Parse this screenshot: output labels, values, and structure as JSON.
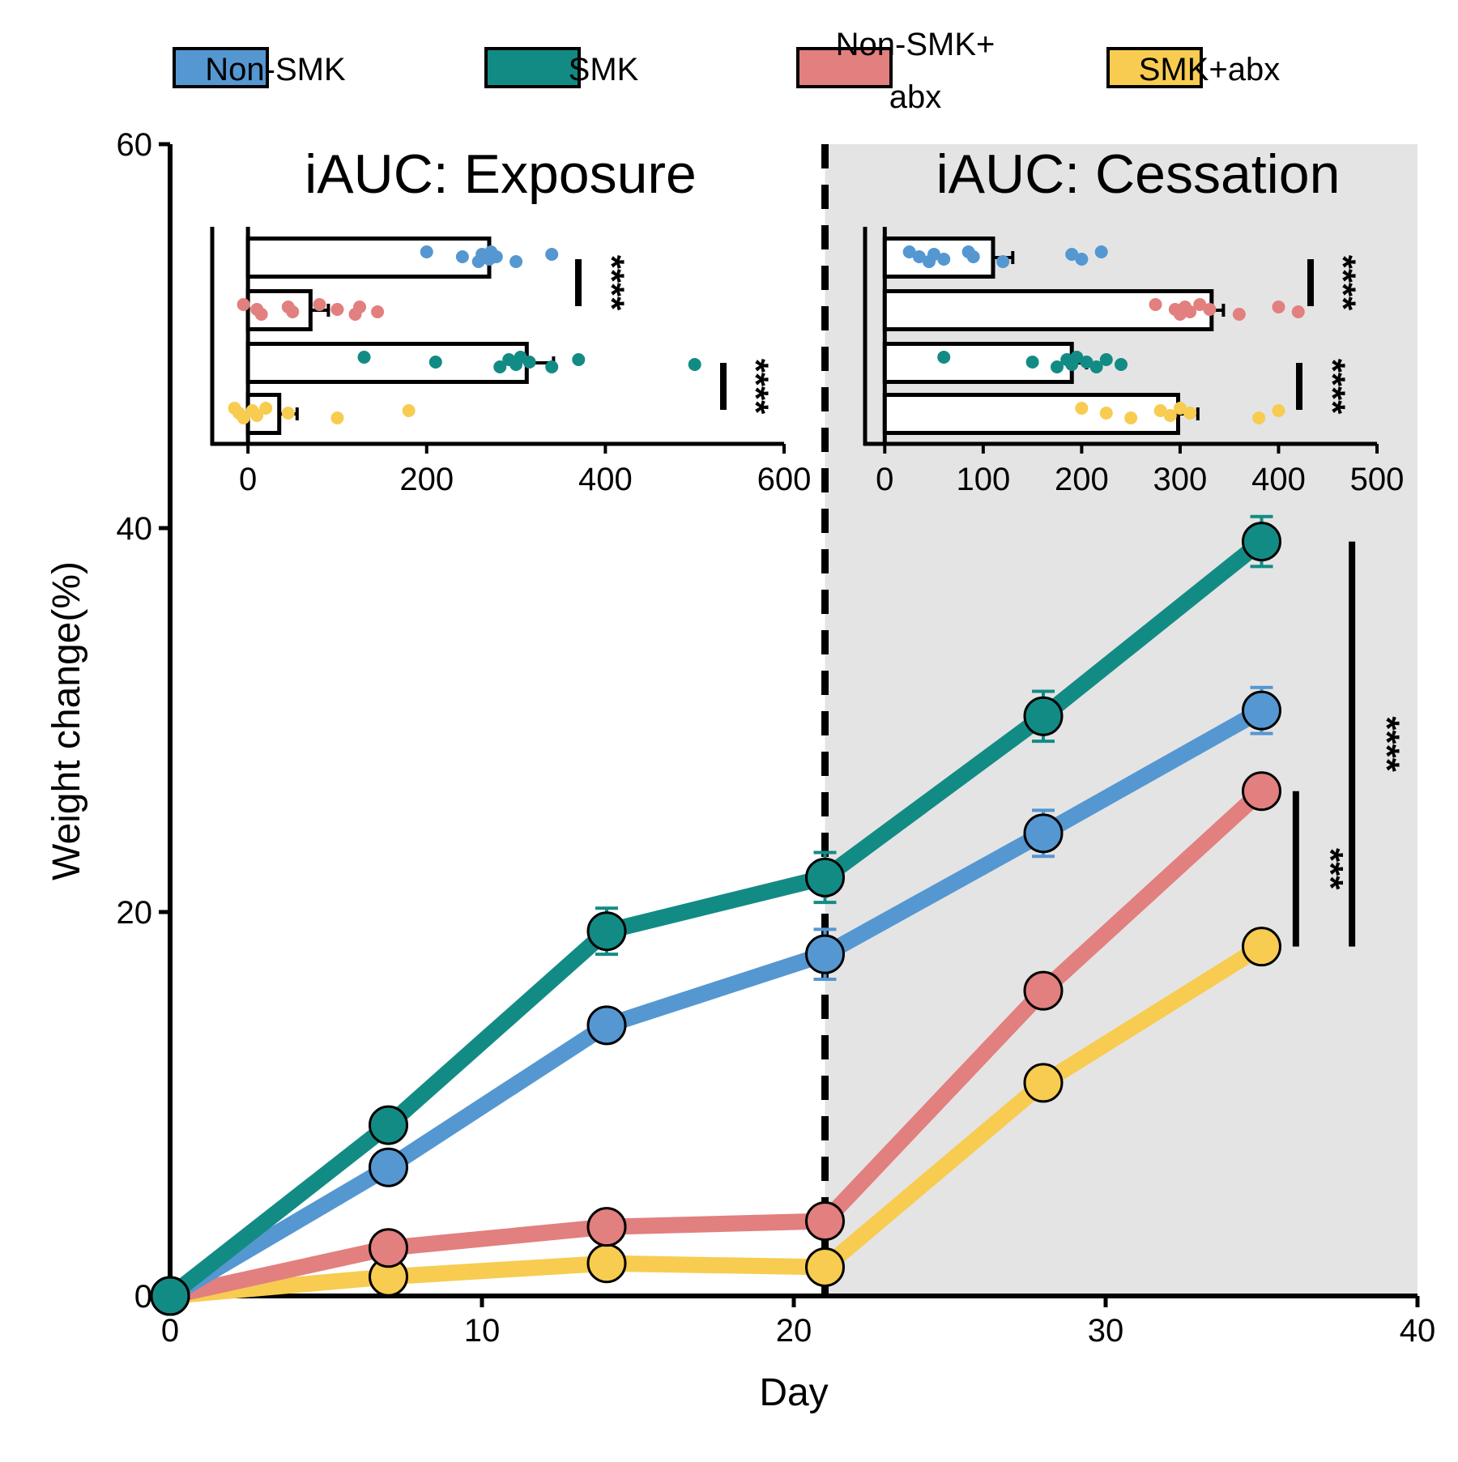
{
  "legend": [
    {
      "label": "Non-SMK",
      "color": "#5597d1"
    },
    {
      "label": "SMK",
      "color": "#138b85"
    },
    {
      "label": "Non-SMK+",
      "label2": "abx",
      "color": "#e27f7f"
    },
    {
      "label": "SMK+abx",
      "color": "#f7cc50"
    }
  ],
  "chart_data": [
    {
      "type": "line",
      "xlabel": "Day",
      "ylabel": "Weight change(%)",
      "xlim": [
        0,
        40
      ],
      "ylim": [
        0,
        60
      ],
      "xticks": [
        "0",
        "10",
        "20",
        "30",
        "40"
      ],
      "yticks": [
        "0",
        "20",
        "40",
        "60"
      ],
      "x": [
        0,
        7,
        14,
        21,
        28,
        35
      ],
      "shaded_region_x": [
        21,
        40
      ],
      "vline_x": 21,
      "series": [
        {
          "name": "SMK",
          "color": "#138b85",
          "values": [
            0,
            8.9,
            19.0,
            21.8,
            30.2,
            39.3
          ],
          "errors": [
            0,
            0,
            1.2,
            1.3,
            1.3,
            1.3
          ]
        },
        {
          "name": "Non-SMK",
          "color": "#5597d1",
          "values": [
            0,
            6.7,
            14.1,
            17.8,
            24.1,
            30.5
          ],
          "errors": [
            0,
            0,
            0,
            1.3,
            1.2,
            1.2
          ]
        },
        {
          "name": "Non-SMK+abx",
          "color": "#e27f7f",
          "values": [
            0,
            2.5,
            3.6,
            3.9,
            15.9,
            26.3
          ],
          "errors": [
            0,
            0,
            0,
            0,
            0,
            0
          ]
        },
        {
          "name": "SMK+abx",
          "color": "#f7cc50",
          "values": [
            0,
            1.0,
            1.7,
            1.5,
            11.1,
            18.2
          ],
          "errors": [
            0,
            0,
            0,
            0,
            0,
            0.8
          ]
        }
      ],
      "significance": [
        {
          "x": 36.1,
          "y_range": [
            18.2,
            26.3
          ],
          "label": "***"
        },
        {
          "x": 37.9,
          "y_range": [
            18.2,
            39.3
          ],
          "label": "****"
        }
      ]
    },
    {
      "type": "bar",
      "title": "iAUC: Exposure",
      "orientation": "horizontal",
      "xlim": [
        -40,
        600
      ],
      "xticks": [
        "0",
        "200",
        "400",
        "600"
      ],
      "categories": [
        "Non-SMK",
        "Non-SMK+abx",
        "SMK",
        "SMK+abx"
      ],
      "colors": [
        "#5597d1",
        "#e27f7f",
        "#138b85",
        "#f7cc50"
      ],
      "values": [
        270,
        70,
        312,
        35
      ],
      "errors": [
        0,
        20,
        30,
        20
      ],
      "points": [
        [
          200,
          240,
          258,
          262,
          270,
          272,
          278,
          300,
          340
        ],
        [
          -5,
          10,
          15,
          45,
          50,
          80,
          100,
          120,
          125,
          145
        ],
        [
          130,
          210,
          282,
          292,
          300,
          305,
          315,
          340,
          370,
          500
        ],
        [
          -15,
          -10,
          -5,
          5,
          10,
          20,
          45,
          100,
          180
        ]
      ],
      "significance": [
        {
          "label": "****"
        },
        {
          "label": "****"
        }
      ]
    },
    {
      "type": "bar",
      "title": "iAUC: Cessation",
      "orientation": "horizontal",
      "xlim": [
        -20,
        500
      ],
      "xticks": [
        "0",
        "100",
        "200",
        "300",
        "400",
        "500"
      ],
      "categories": [
        "Non-SMK",
        "Non-SMK+abx",
        "SMK",
        "SMK+abx"
      ],
      "colors": [
        "#5597d1",
        "#e27f7f",
        "#138b85",
        "#f7cc50"
      ],
      "values": [
        110,
        332,
        190,
        298
      ],
      "errors": [
        20,
        12,
        15,
        20
      ],
      "points": [
        [
          25,
          35,
          45,
          50,
          60,
          85,
          90,
          120,
          190,
          200,
          220
        ],
        [
          275,
          295,
          300,
          305,
          310,
          320,
          330,
          360,
          400,
          420
        ],
        [
          60,
          150,
          175,
          185,
          190,
          195,
          205,
          215,
          225,
          240
        ],
        [
          200,
          225,
          250,
          280,
          290,
          300,
          310,
          380,
          400
        ]
      ],
      "significance": [
        {
          "label": "****"
        },
        {
          "label": "****"
        }
      ]
    }
  ]
}
